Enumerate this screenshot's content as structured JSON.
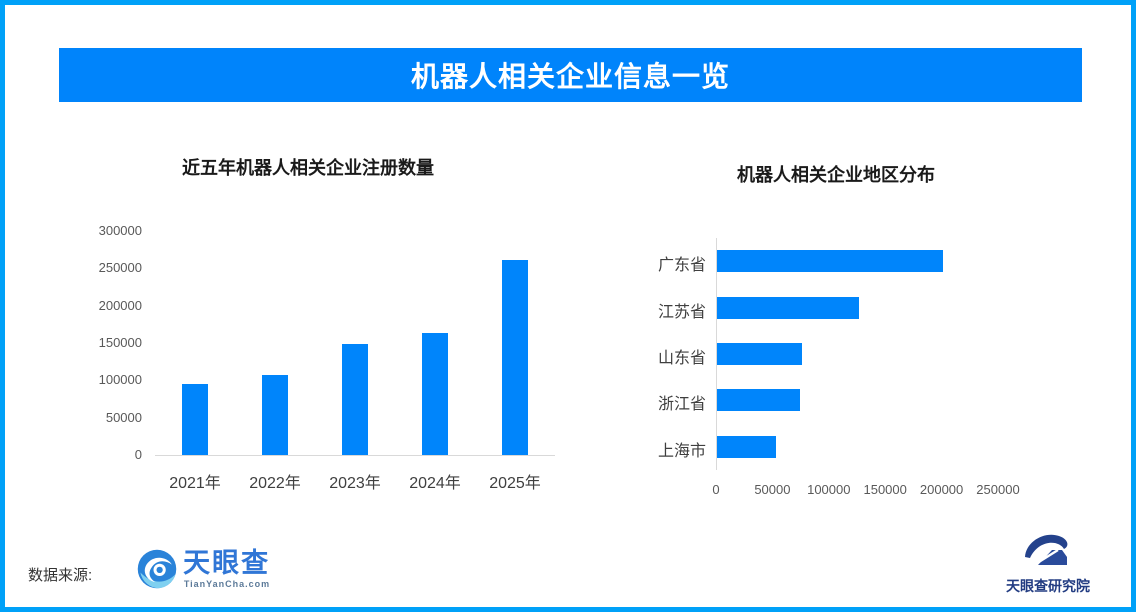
{
  "page": {
    "border_color": "#00A1F8",
    "background": "#ffffff"
  },
  "header": {
    "title": "机器人相关企业信息一览",
    "background": "#0084FB",
    "text_color": "#ffffff"
  },
  "chart_data": [
    {
      "type": "bar",
      "title": "近五年机器人相关企业注册数量",
      "categories": [
        "2021年",
        "2022年",
        "2023年",
        "2024年",
        "2025年"
      ],
      "values": [
        95000,
        107000,
        148000,
        164000,
        261000
      ],
      "xlabel": "",
      "ylabel": "",
      "ylim": [
        0,
        300000
      ],
      "yticks": [
        0,
        50000,
        100000,
        150000,
        200000,
        250000,
        300000
      ],
      "bar_color": "#0085FB",
      "grid": false,
      "legend_position": "none"
    },
    {
      "type": "bar",
      "orientation": "horizontal",
      "title": "机器人相关企业地区分布",
      "categories": [
        "广东省",
        "江苏省",
        "山东省",
        "浙江省",
        "上海市"
      ],
      "values": [
        200000,
        126000,
        75000,
        74000,
        52000
      ],
      "xlabel": "",
      "ylabel": "",
      "xlim": [
        0,
        250000
      ],
      "xticks": [
        0,
        50000,
        100000,
        150000,
        200000,
        250000
      ],
      "bar_color": "#0085FB",
      "grid": false,
      "legend_position": "none"
    }
  ],
  "footer": {
    "source_label": "数据来源:",
    "source_logo": {
      "name": "天眼查",
      "subtext": "TianYanCha.com",
      "icon": "tianyancha-eye-icon",
      "brand_color": "#3076D6"
    },
    "institute_logo": {
      "name": "天眼查研究院",
      "icon": "tianyancha-institute-icon",
      "brand_color": "#223C82"
    }
  }
}
